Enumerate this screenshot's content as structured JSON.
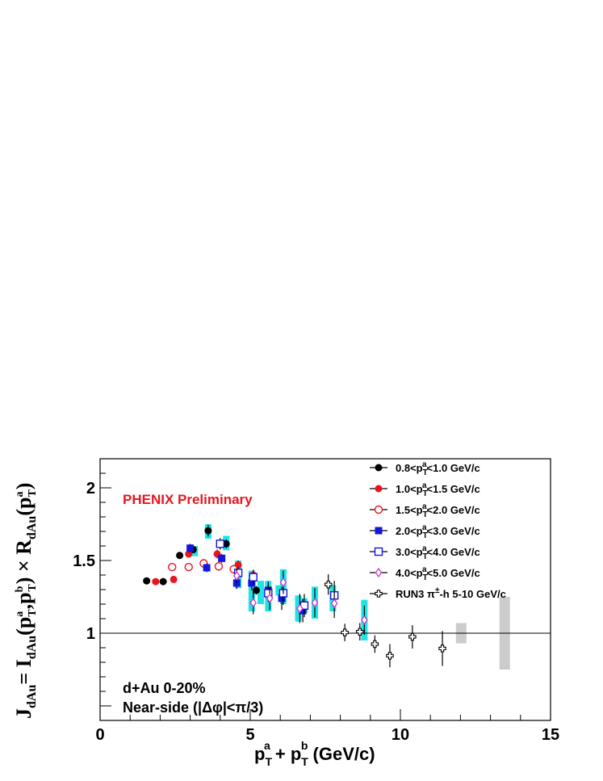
{
  "chart_data": {
    "type": "scatter",
    "title": "",
    "annotation_preliminary": "PHENIX Preliminary",
    "annotation_system": "d+Au 0-20%",
    "annotation_region": "Near-side (|Δφ|<π/3)",
    "xlabel": "p_T^a + p_T^b (GeV/c)",
    "ylabel": "J_dAu = I_dAu(p_T^a,p_T^b) × R_dAu(p_T^a)",
    "xlim": [
      0,
      15
    ],
    "ylim": [
      0.4,
      2.2
    ],
    "x_ticks": [
      0,
      5,
      10,
      15
    ],
    "y_ticks": [
      1,
      1.5,
      2
    ],
    "reference_line": 1,
    "grid": false,
    "legend_position": "top-right",
    "colors": {
      "black": "#000000",
      "red": "#e8151f",
      "blue": "#1515e0",
      "purple": "#cc33cc",
      "cyan": "#1ee4e4",
      "gray": "#cccccc"
    },
    "series": [
      {
        "name": "0.8<p_T^a<1.0 GeV/c",
        "marker": "filled-circle",
        "color": "#000000",
        "x": [
          1.55,
          2.1,
          2.65,
          3.1,
          3.6,
          4.2,
          5.2
        ],
        "y": [
          1.36,
          1.355,
          1.535,
          1.575,
          1.705,
          1.615,
          1.295
        ],
        "yerr": [
          0,
          0,
          0,
          0,
          0.04,
          0.03,
          0.03
        ]
      },
      {
        "name": "1.0<p_T^a<1.5 GeV/c",
        "marker": "filled-circle",
        "color": "#e8151f",
        "x": [
          1.85,
          2.45,
          2.95,
          3.45,
          3.9,
          4.6
        ],
        "y": [
          1.355,
          1.37,
          1.545,
          1.485,
          1.545,
          1.47
        ],
        "yerr": [
          0,
          0,
          0,
          0,
          0.03,
          0.03
        ]
      },
      {
        "name": "1.5<p_T^a<2.0 GeV/c",
        "marker": "open-circle",
        "color": "#e8151f",
        "x": [
          2.4,
          2.95,
          3.45,
          3.95,
          4.45,
          5.1
        ],
        "y": [
          1.455,
          1.455,
          1.48,
          1.46,
          1.44,
          1.395
        ],
        "yerr": [
          0,
          0,
          0,
          0.03,
          0.03,
          0.04
        ]
      },
      {
        "name": "2.0<p_T^a<3.0 GeV/c",
        "marker": "filled-square",
        "color": "#1515e0",
        "x": [
          3.0,
          3.55,
          4.05,
          4.55,
          5.05,
          5.6,
          6.05,
          6.75
        ],
        "y": [
          1.585,
          1.45,
          1.515,
          1.345,
          1.345,
          1.295,
          1.24,
          1.155
        ],
        "yerr": [
          0.03,
          0.03,
          0.03,
          0.04,
          0.05,
          0.06,
          0.08,
          0.08
        ]
      },
      {
        "name": "3.0<p_T^a<4.0 GeV/c",
        "marker": "open-square",
        "color": "#1515e0",
        "x": [
          4.0,
          4.6,
          5.1,
          5.6,
          6.1,
          6.8,
          7.8
        ],
        "y": [
          1.615,
          1.415,
          1.385,
          1.275,
          1.275,
          1.19,
          1.26
        ],
        "yerr": [
          0.04,
          0.04,
          0.05,
          0.06,
          0.08,
          0.08,
          0.1
        ]
      },
      {
        "name": "4.0<p_T^a<5.0 GeV/c",
        "marker": "open-diamond",
        "color": "#cc33cc",
        "x": [
          4.55,
          5.1,
          5.65,
          6.1,
          6.65,
          7.15,
          7.8,
          8.8
        ],
        "y": [
          1.395,
          1.21,
          1.24,
          1.35,
          1.17,
          1.21,
          1.205,
          1.09
        ],
        "yerr": [
          0.05,
          0.08,
          0.08,
          0.08,
          0.1,
          0.1,
          0.1,
          0.1
        ]
      },
      {
        "name": "RUN3 π^±-h 5-10 GeV/c",
        "marker": "open-cross",
        "color": "#000000",
        "x": [
          7.6,
          8.15,
          8.65,
          9.15,
          9.65,
          10.4,
          11.4
        ],
        "y": [
          1.335,
          1.005,
          1.01,
          0.925,
          0.845,
          0.975,
          0.895
        ],
        "yerr": [
          0.07,
          0.06,
          0.06,
          0.06,
          0.08,
          0.08,
          0.12
        ]
      }
    ],
    "cyan_error_bands": [
      {
        "x": 3.6,
        "y0": 1.65,
        "y1": 1.75
      },
      {
        "x": 3.15,
        "y0": 1.53,
        "y1": 1.6
      },
      {
        "x": 4.2,
        "y0": 1.57,
        "y1": 1.67
      },
      {
        "x": 4.6,
        "y0": 1.31,
        "y1": 1.5
      },
      {
        "x": 5.05,
        "y0": 1.15,
        "y1": 1.43
      },
      {
        "x": 5.35,
        "y0": 1.2,
        "y1": 1.36
      },
      {
        "x": 5.6,
        "y0": 1.15,
        "y1": 1.36
      },
      {
        "x": 5.95,
        "y0": 1.26,
        "y1": 1.33
      },
      {
        "x": 6.1,
        "y0": 1.2,
        "y1": 1.44
      },
      {
        "x": 6.6,
        "y0": 1.08,
        "y1": 1.26
      },
      {
        "x": 6.8,
        "y0": 1.14,
        "y1": 1.24
      },
      {
        "x": 7.15,
        "y0": 1.1,
        "y1": 1.32
      },
      {
        "x": 7.75,
        "y0": 1.15,
        "y1": 1.33
      },
      {
        "x": 8.8,
        "y0": 0.95,
        "y1": 1.23
      }
    ],
    "gray_norm_boxes": [
      {
        "x0": 11.85,
        "x1": 12.2,
        "y0": 0.93,
        "y1": 1.07
      },
      {
        "x0": 13.3,
        "x1": 13.65,
        "y0": 0.75,
        "y1": 1.25
      }
    ]
  }
}
